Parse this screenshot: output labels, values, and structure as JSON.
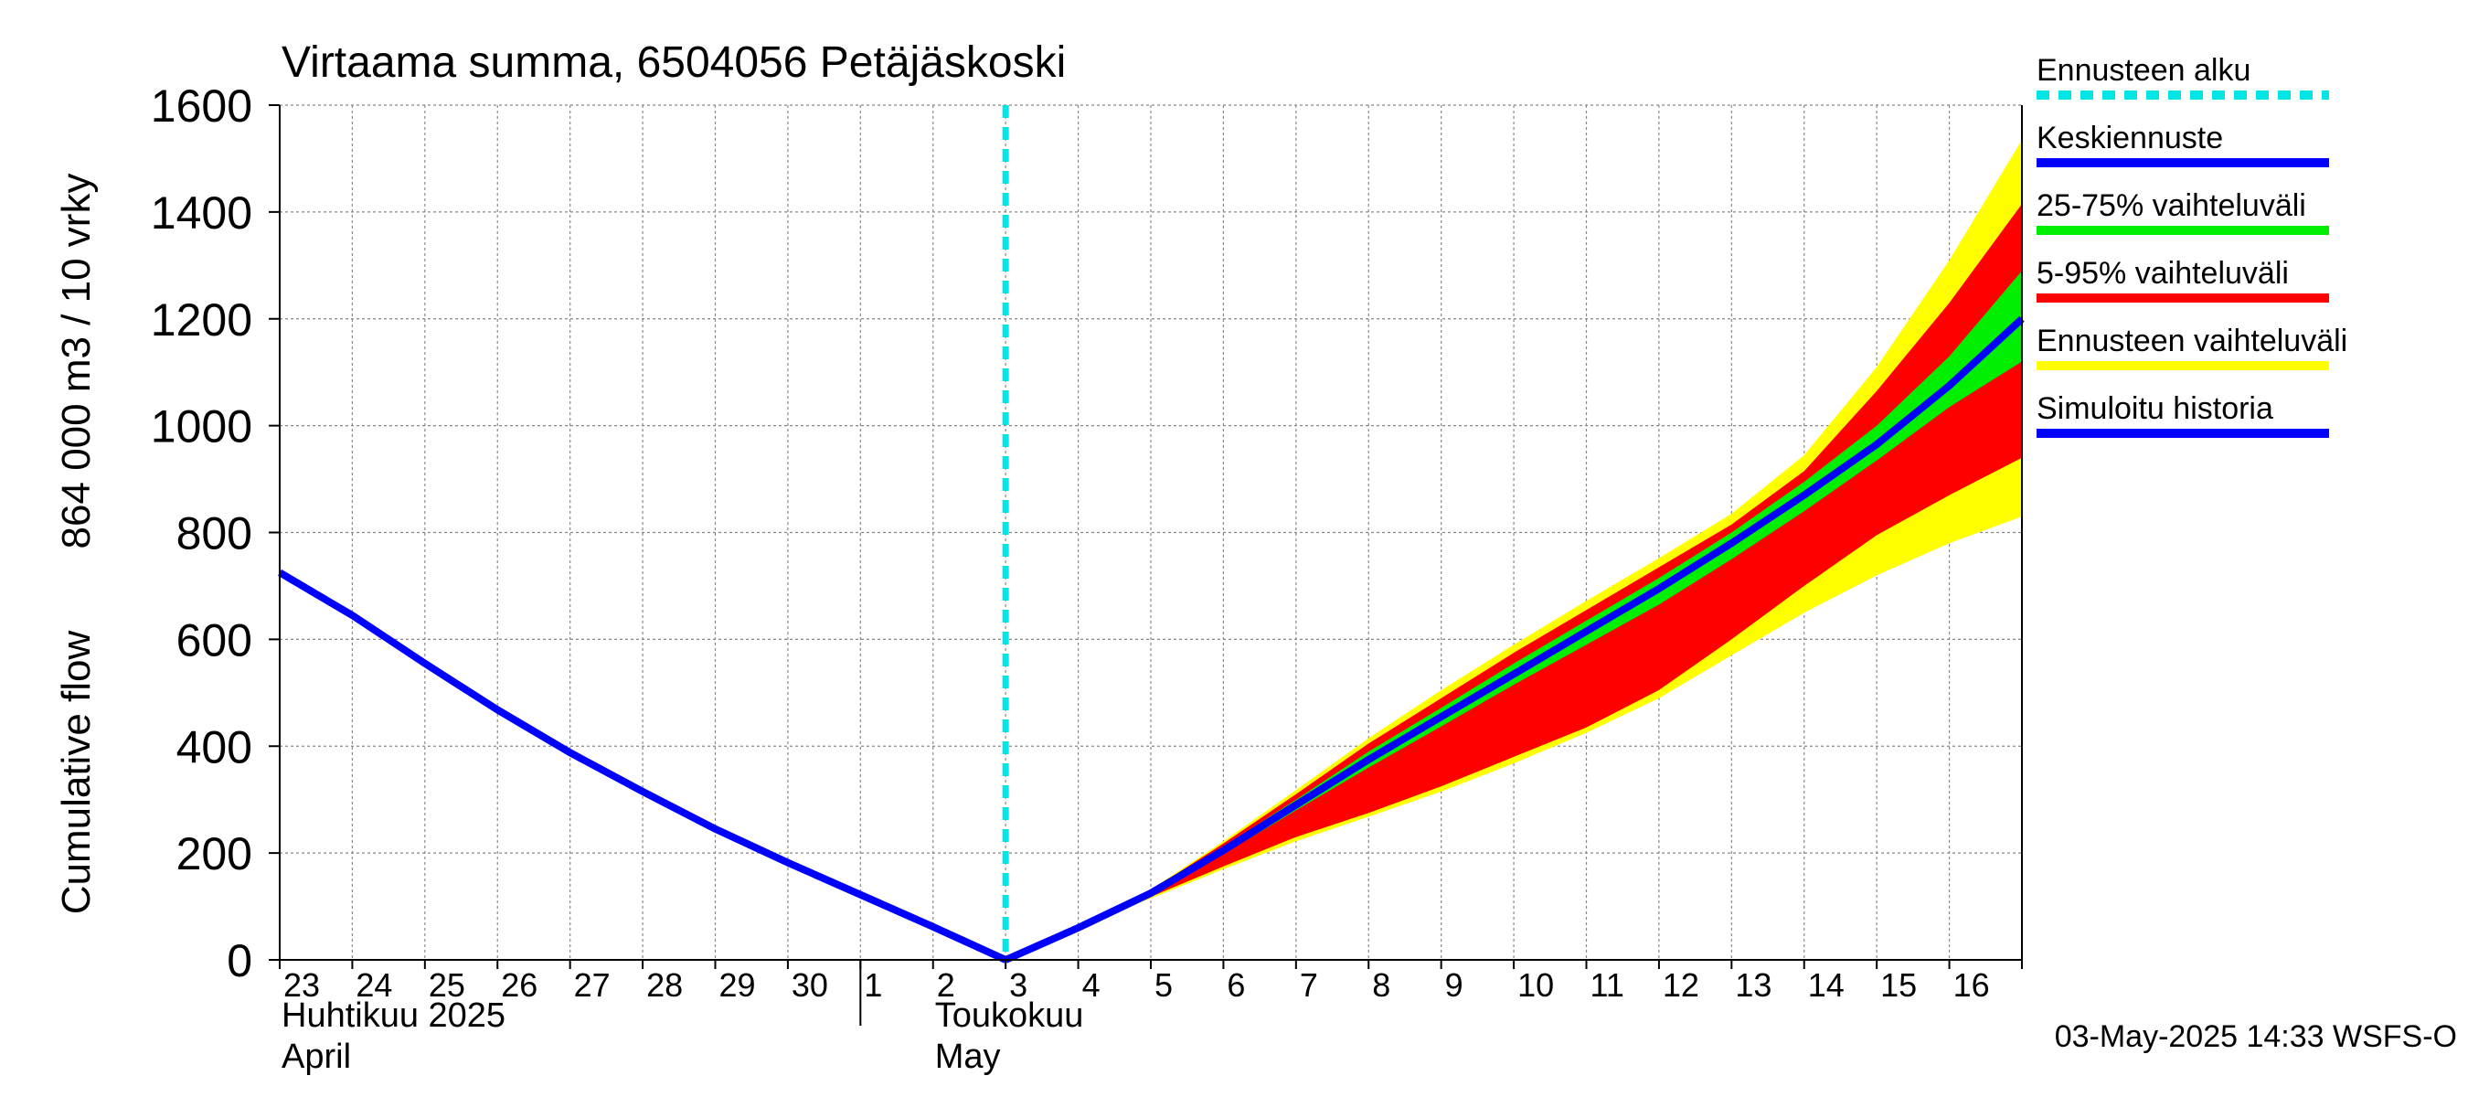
{
  "chart_data": {
    "type": "area",
    "title": "Virtaama summa, 6504056 Petäjäskoski",
    "ylabel_line1": "Cumulative flow",
    "ylabel_line2": "864 000 m3 / 10 vrky",
    "ylim": [
      0,
      1600
    ],
    "yticks": [
      0,
      200,
      400,
      600,
      800,
      1000,
      1200,
      1400,
      1600
    ],
    "xlim": [
      0,
      24
    ],
    "day_labels": [
      "23",
      "24",
      "25",
      "26",
      "27",
      "28",
      "29",
      "30",
      "1",
      "2",
      "3",
      "4",
      "5",
      "6",
      "7",
      "8",
      "9",
      "10",
      "11",
      "12",
      "13",
      "14",
      "15",
      "16"
    ],
    "month_separator_x": 8,
    "month_labels": [
      {
        "x": 0,
        "line1": "Huhtikuu  2025",
        "line2": "April"
      },
      {
        "x": 9,
        "line1": "Toukokuu",
        "line2": "May"
      }
    ],
    "forecast_start_x": 10,
    "simulated_history": {
      "x": [
        0,
        1,
        2,
        3,
        4,
        5,
        6,
        7,
        8,
        9,
        10
      ],
      "y": [
        725,
        645,
        555,
        468,
        388,
        315,
        245,
        182,
        122,
        62,
        0
      ]
    },
    "forecast_x": [
      10,
      11,
      12,
      13,
      14,
      15,
      16,
      17,
      18,
      19,
      20,
      21,
      22,
      23,
      24
    ],
    "mean_forecast": [
      0,
      60,
      125,
      205,
      290,
      375,
      455,
      535,
      615,
      695,
      780,
      870,
      965,
      1075,
      1200
    ],
    "band_25_75": {
      "low": [
        0,
        60,
        122,
        198,
        280,
        360,
        437,
        515,
        590,
        665,
        750,
        840,
        935,
        1035,
        1120
      ],
      "high": [
        0,
        60,
        128,
        212,
        300,
        390,
        472,
        555,
        635,
        715,
        800,
        895,
        1000,
        1130,
        1290
      ]
    },
    "band_5_95": {
      "low": [
        0,
        60,
        118,
        175,
        230,
        275,
        325,
        380,
        435,
        505,
        600,
        700,
        795,
        870,
        940
      ],
      "high": [
        0,
        60,
        130,
        218,
        310,
        405,
        490,
        575,
        655,
        735,
        815,
        915,
        1065,
        1230,
        1415
      ]
    },
    "band_full": {
      "low": [
        0,
        60,
        115,
        170,
        222,
        268,
        315,
        368,
        425,
        490,
        570,
        650,
        720,
        780,
        830
      ],
      "high": [
        0,
        60,
        132,
        222,
        318,
        415,
        505,
        590,
        672,
        752,
        835,
        945,
        1110,
        1310,
        1535
      ]
    },
    "legend": {
      "position": "right",
      "entries": [
        {
          "label": "Ennusteen alku",
          "color": "#00e5e5",
          "style": "dashed"
        },
        {
          "label": "Keskiennuste",
          "color": "#0000ff",
          "style": "solid"
        },
        {
          "label": "25-75% vaihteluväli",
          "color": "#00ee00",
          "style": "solid"
        },
        {
          "label": "5-95% vaihteluväli",
          "color": "#ff0000",
          "style": "solid"
        },
        {
          "label": "Ennusteen vaihteluväli",
          "color": "#ffff00",
          "style": "solid"
        },
        {
          "label": "Simuloitu historia",
          "color": "#0000ff",
          "style": "solid"
        }
      ]
    },
    "colors": {
      "forecast_start": "#00e5e5",
      "mean": "#0000ff",
      "history": "#0000ff",
      "band_25_75": "#00ee00",
      "band_5_95": "#ff0000",
      "band_full": "#ffff00",
      "grid": "#888888"
    },
    "footer": "03-May-2025 14:33 WSFS-O"
  }
}
